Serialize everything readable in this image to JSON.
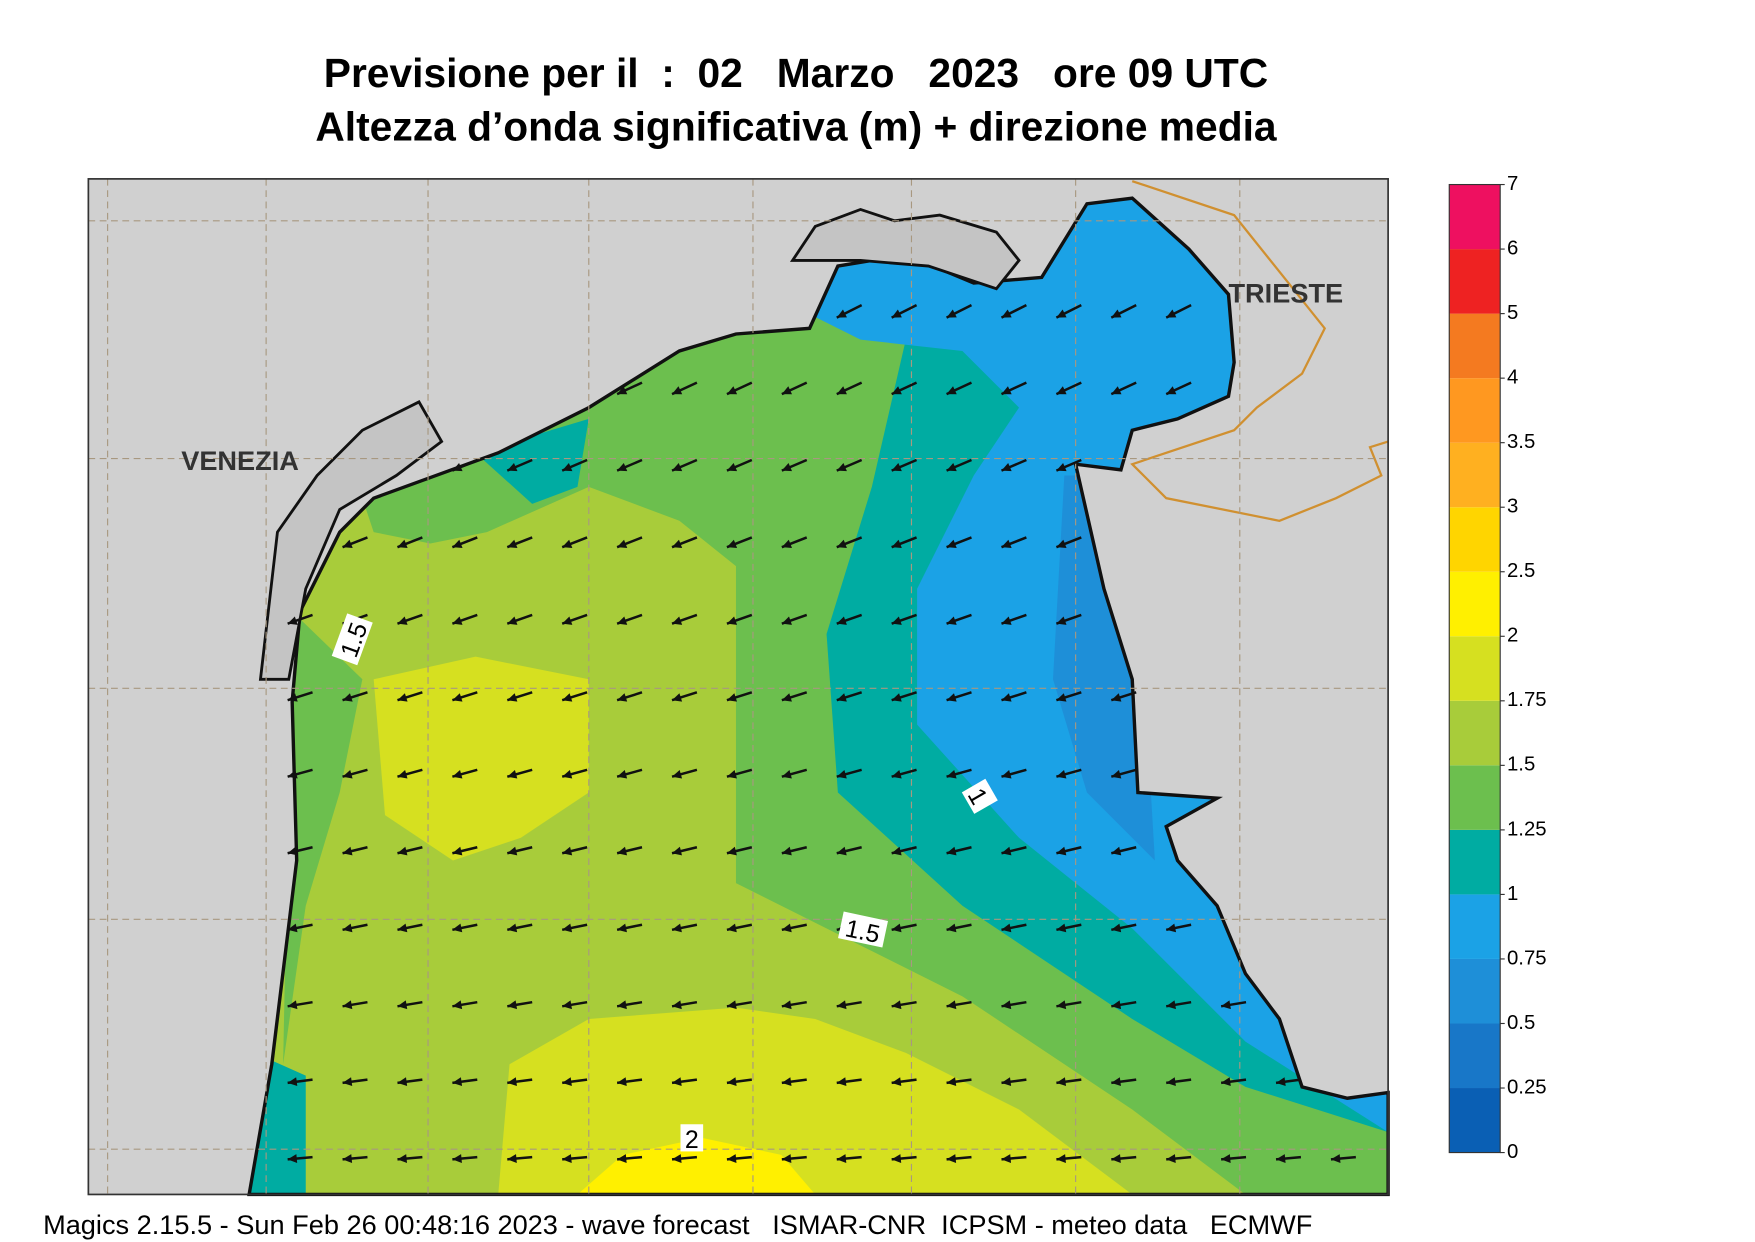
{
  "header": {
    "title": "Previsione per il  :  02   Marzo   2023   ore 09 UTC",
    "subtitle": "Altezza d’onda significativa (m) + direzione media"
  },
  "map": {
    "cities": [
      "VENEZIA",
      "TRIESTE"
    ],
    "contour_labels": [
      "1.5",
      "1",
      "1.5",
      "2"
    ]
  },
  "colorbar": {
    "levels": [
      0,
      0.25,
      0.5,
      0.75,
      1,
      1.25,
      1.5,
      1.75,
      2,
      2.5,
      3,
      3.5,
      4,
      5,
      6,
      7
    ],
    "colors": [
      "#0a5fb4",
      "#1877c8",
      "#1e8fd8",
      "#1ba2e6",
      "#00aca2",
      "#6cbf4e",
      "#a8cc3a",
      "#d6e020",
      "#fff000",
      "#ffd500",
      "#ffb020",
      "#ff9820",
      "#f47a20",
      "#ee2222",
      "#ee1060"
    ]
  },
  "footer": "Magics 2.15.5 - Sun Feb 26 00:48:16 2023 - wave forecast   ISMAR-CNR  ICPSM - meteo data   ECMWF"
}
